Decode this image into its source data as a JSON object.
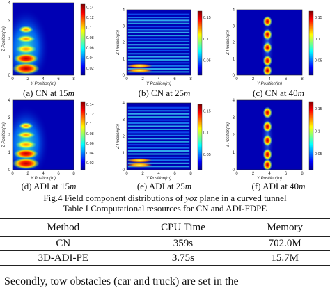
{
  "panels": [
    {
      "id": "a",
      "caption_pre": "(a) CN at 15",
      "caption_unit": "m",
      "ylabel": "Z Position(m)",
      "xlabel": "Y Position(m)",
      "cb_ticks": [
        "0.14",
        "0.12",
        "0.1",
        "0.08",
        "0.06",
        "0.04",
        "0.02"
      ],
      "pattern": "blobs",
      "yticks": [
        "4",
        "3",
        "2",
        "1",
        "0"
      ],
      "xticks": [
        "0",
        "2",
        "4",
        "6",
        "8"
      ]
    },
    {
      "id": "b",
      "caption_pre": "(b) CN at 25",
      "caption_unit": "m",
      "ylabel": "Z Position(m)",
      "xlabel": "Y Position(m)",
      "cb_ticks": [
        "0.15",
        "0.1",
        "0.05"
      ],
      "pattern": "stripes",
      "yticks": [
        "4",
        "3",
        "2",
        "1",
        "0"
      ],
      "xticks": [
        "0",
        "2",
        "4",
        "6",
        "8"
      ]
    },
    {
      "id": "c",
      "caption_pre": "(c) CN at 40",
      "caption_unit": "m",
      "ylabel": "Z Position(m)",
      "xlabel": "Y Position(m)",
      "cb_ticks": [
        "0.15",
        "0.1",
        "0.05"
      ],
      "pattern": "column",
      "yticks": [
        "4",
        "3",
        "2",
        "1",
        "0"
      ],
      "xticks": [
        "0",
        "2",
        "4",
        "6",
        "8"
      ]
    },
    {
      "id": "d",
      "caption_pre": "(d) ADI at 15",
      "caption_unit": "m",
      "ylabel": "Z Position(m)",
      "xlabel": "Y Position(m)",
      "cb_ticks": [
        "0.14",
        "0.12",
        "0.1",
        "0.08",
        "0.06",
        "0.04",
        "0.02"
      ],
      "pattern": "blobs",
      "yticks": [
        "4",
        "3",
        "2",
        "1",
        "0"
      ],
      "xticks": [
        "0",
        "2",
        "4",
        "6",
        "8"
      ]
    },
    {
      "id": "e",
      "caption_pre": "(e) ADI at 25",
      "caption_unit": "m",
      "ylabel": "Z Position(m)",
      "xlabel": "Y Position(m)",
      "cb_ticks": [
        "0.15",
        "0.1",
        "0.05"
      ],
      "pattern": "stripes",
      "yticks": [
        "4",
        "3",
        "2",
        "1",
        "0"
      ],
      "xticks": [
        "0",
        "2",
        "4",
        "6",
        "8"
      ]
    },
    {
      "id": "f",
      "caption_pre": "(f) ADI at 40",
      "caption_unit": "m",
      "ylabel": "Z Position(m)",
      "xlabel": "Y Position(m)",
      "cb_ticks": [
        "0.15",
        "0.1",
        "0.05"
      ],
      "pattern": "column",
      "yticks": [
        "4",
        "3",
        "2",
        "1",
        "0"
      ],
      "xticks": [
        "0",
        "2",
        "4",
        "6",
        "8"
      ]
    }
  ],
  "figure_caption": {
    "pre": "Fig.4 Field component distributions of ",
    "em": "yoz",
    "post": " plane in a curved tunnel"
  },
  "table_caption": "Table I Computational resources for CN and ADI-FDPE",
  "table": {
    "headers": [
      "Method",
      "CPU Time",
      "Memory"
    ],
    "rows": [
      [
        "CN",
        "359s",
        "702.0M"
      ],
      [
        "3D-ADI-PE",
        "3.75s",
        "15.7M"
      ]
    ]
  },
  "paragraph_fragment": "Secondly, tow obstacles (car and truck) are set in the",
  "colors": {
    "jet_low": "#00008f",
    "jet_mid": "#7fff7f",
    "jet_high": "#800000"
  }
}
